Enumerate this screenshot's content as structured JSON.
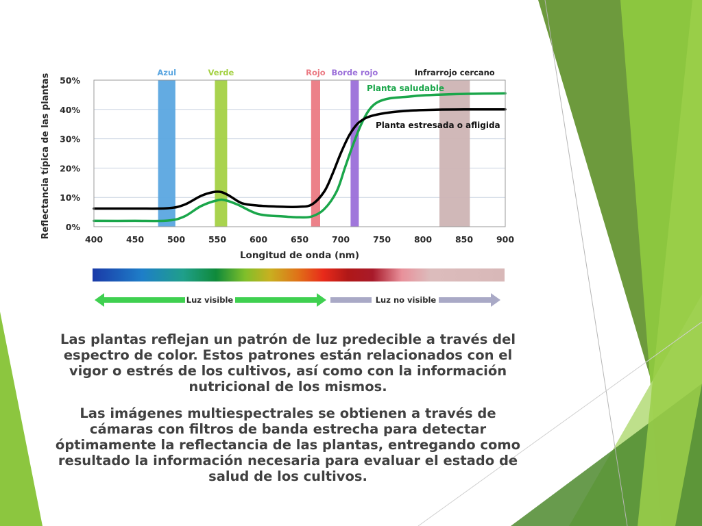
{
  "slide": {
    "paragraphs": [
      "Las plantas reflejan un patrón de luz predecible a través del espectro de color. Estos patrones están relacionados con el vigor o estrés de los cultivos, así como con la información nutricional de los mismos.",
      "Las imágenes multiespectrales se obtienen a través de cámaras con filtros de banda estrecha para detectar óptimamente la reflectancia de las plantas, entregando como resultado la información necesaria para evaluar el estado de salud de los cultivos."
    ],
    "theme_colors": [
      "#6d9a3d",
      "#8cc63f",
      "#b7dd7e",
      "#d6ebb4",
      "#4e8a2e"
    ]
  },
  "chart_data": {
    "type": "line",
    "xlabel": "Longitud de onda (nm)",
    "ylabel": "Reflectancia típica de las plantas",
    "xlim": [
      400,
      900
    ],
    "ylim": [
      0,
      50
    ],
    "x_ticks": [
      400,
      450,
      500,
      550,
      600,
      650,
      700,
      750,
      800,
      850,
      900
    ],
    "y_ticks": [
      0,
      10,
      20,
      30,
      40,
      50
    ],
    "y_tick_labels": [
      "0%",
      "10%",
      "20%",
      "30%",
      "40%",
      "50%"
    ],
    "grid": true,
    "bands": [
      {
        "name": "Azul",
        "range": [
          478,
          499
        ],
        "color": "#5ba6e0"
      },
      {
        "name": "Verde",
        "range": [
          547,
          562
        ],
        "color": "#a4d144"
      },
      {
        "name": "Rojo",
        "range": [
          664,
          675
        ],
        "color": "#eb7a83"
      },
      {
        "name": "Borde rojo",
        "range": [
          712,
          722
        ],
        "color": "#9b6fd9"
      },
      {
        "name": "Infrarrojo cercano",
        "range": [
          820,
          857
        ],
        "color": "#cdb4b4"
      }
    ],
    "series": [
      {
        "name": "Planta saludable",
        "color": "#1aa64a",
        "x": [
          400,
          450,
          490,
          510,
          530,
          550,
          560,
          575,
          600,
          630,
          650,
          665,
          680,
          695,
          705,
          715,
          725,
          735,
          745,
          760,
          780,
          800,
          850,
          900
        ],
        "y": [
          2.0,
          2.0,
          2.1,
          3.5,
          7.0,
          9.0,
          9.0,
          7.5,
          4.3,
          3.5,
          3.2,
          3.5,
          6.0,
          12.0,
          20.0,
          28.0,
          35.0,
          40.0,
          42.5,
          43.8,
          44.3,
          44.8,
          45.3,
          45.5
        ]
      },
      {
        "name": "Planta estresada o afligida",
        "color": "#000000",
        "x": [
          400,
          450,
          490,
          510,
          530,
          545,
          555,
          565,
          580,
          600,
          630,
          650,
          665,
          680,
          690,
          700,
          710,
          720,
          730,
          740,
          760,
          780,
          800,
          850,
          900
        ],
        "y": [
          6.2,
          6.2,
          6.3,
          7.5,
          10.5,
          11.8,
          11.8,
          10.5,
          8.0,
          7.2,
          6.8,
          6.8,
          7.6,
          12.0,
          18.0,
          25.0,
          31.0,
          35.0,
          37.0,
          38.0,
          39.0,
          39.5,
          39.8,
          40.0,
          40.0
        ]
      }
    ],
    "spectrum_arrows": [
      {
        "label": "Luz visible",
        "color": "#3fd050"
      },
      {
        "label": "Luz no visible",
        "color": "#a9a9c6"
      }
    ]
  }
}
